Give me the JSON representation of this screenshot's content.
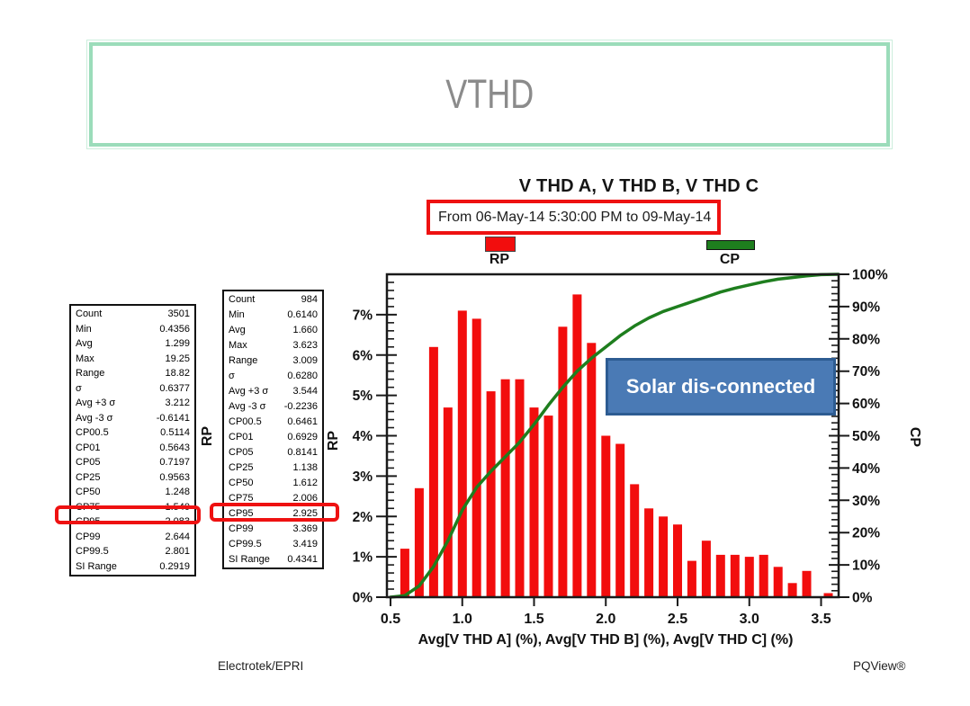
{
  "slide": {
    "title": "VTHD",
    "title_color": "#8b8b8b",
    "border_color": "#9bdcba"
  },
  "chart": {
    "title": "V THD A, V THD B, V THD C",
    "period": "From 06-May-14 5:30:00 PM to 09-May-14",
    "legend": [
      {
        "label": "RP",
        "color": "#f20d0d"
      },
      {
        "label": "CP",
        "color": "#1e7e1e"
      }
    ]
  },
  "chart_data": {
    "type": "bar",
    "title": "V THD A, V THD B, V THD C",
    "subtitle": "From 06-May-14 5:30:00 PM to 09-May-14",
    "xlabel": "Avg[V THD A] (%), Avg[V THD B] (%), Avg[V THD C] (%)",
    "ylabel_left": "RP",
    "ylabel_right": "CP",
    "xlim": [
      0.5,
      3.62
    ],
    "ylim_left": [
      0,
      8
    ],
    "ylim_right": [
      0,
      100
    ],
    "x_tick_labels": [
      "0.5",
      "1.0",
      "1.5",
      "2.0",
      "2.5",
      "3.0",
      "3.5"
    ],
    "y_left_tick_labels": [
      "0%",
      "1%",
      "2%",
      "3%",
      "4%",
      "5%",
      "6%",
      "7%"
    ],
    "y_right_tick_labels": [
      "0%",
      "10%",
      "20%",
      "30%",
      "40%",
      "50%",
      "60%",
      "70%",
      "80%",
      "90%",
      "100%"
    ],
    "bar_color": "#f20d0d",
    "line_color": "#1e7e1e",
    "bars": {
      "x": [
        0.6,
        0.7,
        0.8,
        0.9,
        1.0,
        1.1,
        1.2,
        1.3,
        1.4,
        1.5,
        1.6,
        1.7,
        1.8,
        1.9,
        2.0,
        2.1,
        2.2,
        2.3,
        2.4,
        2.5,
        2.6,
        2.7,
        2.8,
        2.9,
        3.0,
        3.1,
        3.2,
        3.3,
        3.4,
        3.55
      ],
      "rp_percent": [
        1.2,
        2.7,
        6.2,
        4.7,
        7.1,
        6.9,
        5.1,
        5.4,
        5.4,
        4.7,
        4.5,
        6.7,
        7.5,
        6.3,
        4.0,
        3.8,
        2.8,
        2.2,
        2.0,
        1.8,
        0.9,
        1.4,
        1.05,
        1.05,
        1.0,
        1.05,
        0.75,
        0.35,
        0.65,
        0.1
      ]
    },
    "cp_curve": {
      "x": [
        0.5,
        0.6,
        0.7,
        0.8,
        0.9,
        1.0,
        1.1,
        1.2,
        1.3,
        1.4,
        1.5,
        1.6,
        1.7,
        1.8,
        1.9,
        2.0,
        2.1,
        2.2,
        2.3,
        2.4,
        2.5,
        2.6,
        2.7,
        2.8,
        2.9,
        3.0,
        3.1,
        3.2,
        3.3,
        3.4,
        3.5,
        3.62
      ],
      "cp_percent": [
        0,
        0.5,
        3.5,
        9.5,
        17.5,
        27,
        34,
        39,
        43.5,
        48,
        53.5,
        59.5,
        65,
        70,
        74,
        77.5,
        81,
        84,
        86.5,
        88.5,
        90,
        91.5,
        93,
        94.5,
        95.7,
        96.7,
        97.7,
        98.5,
        99,
        99.5,
        99.9,
        100
      ]
    }
  },
  "stats_tables": [
    {
      "side_label": "RP",
      "highlighted_row": "CP95",
      "rows": [
        {
          "label": "Count",
          "value": "3501"
        },
        {
          "label": "Min",
          "value": "0.4356"
        },
        {
          "label": "Avg",
          "value": "1.299"
        },
        {
          "label": "Max",
          "value": "19.25"
        },
        {
          "label": "Range",
          "value": "18.82"
        },
        {
          "label": "σ",
          "value": "0.6377"
        },
        {
          "label": "Avg +3 σ",
          "value": "3.212"
        },
        {
          "label": "Avg -3 σ",
          "value": "-0.6141"
        },
        {
          "label": "CP00.5",
          "value": "0.5114"
        },
        {
          "label": "CP01",
          "value": "0.5643"
        },
        {
          "label": "CP05",
          "value": "0.7197"
        },
        {
          "label": "CP25",
          "value": "0.9563"
        },
        {
          "label": "CP50",
          "value": "1.248"
        },
        {
          "label": "CP75",
          "value": "1.540"
        },
        {
          "label": "CP95",
          "value": "2.083"
        },
        {
          "label": "CP99",
          "value": "2.644"
        },
        {
          "label": "CP99.5",
          "value": "2.801"
        },
        {
          "label": "SI Range",
          "value": "0.2919"
        }
      ]
    },
    {
      "side_label": "RP",
      "highlighted_row": "CP95",
      "rows": [
        {
          "label": "Count",
          "value": "984"
        },
        {
          "label": "Min",
          "value": "0.6140"
        },
        {
          "label": "Avg",
          "value": "1.660"
        },
        {
          "label": "Max",
          "value": "3.623"
        },
        {
          "label": "Range",
          "value": "3.009"
        },
        {
          "label": "σ",
          "value": "0.6280"
        },
        {
          "label": "Avg +3 σ",
          "value": "3.544"
        },
        {
          "label": "Avg -3 σ",
          "value": "-0.2236"
        },
        {
          "label": "CP00.5",
          "value": "0.6461"
        },
        {
          "label": "CP01",
          "value": "0.6929"
        },
        {
          "label": "CP05",
          "value": "0.8141"
        },
        {
          "label": "CP25",
          "value": "1.138"
        },
        {
          "label": "CP50",
          "value": "1.612"
        },
        {
          "label": "CP75",
          "value": "2.006"
        },
        {
          "label": "CP95",
          "value": "2.925"
        },
        {
          "label": "CP99",
          "value": "3.369"
        },
        {
          "label": "CP99.5",
          "value": "3.419"
        },
        {
          "label": "SI Range",
          "value": "0.4341"
        }
      ]
    }
  ],
  "annotations": {
    "solar": {
      "label": "Solar dis-connected",
      "fill": "#4a7ab5",
      "border": "#2d5c92"
    },
    "highlight_color": "#ee1111"
  },
  "footer": {
    "left": "Electrotek/EPRI",
    "right": "PQView®"
  }
}
